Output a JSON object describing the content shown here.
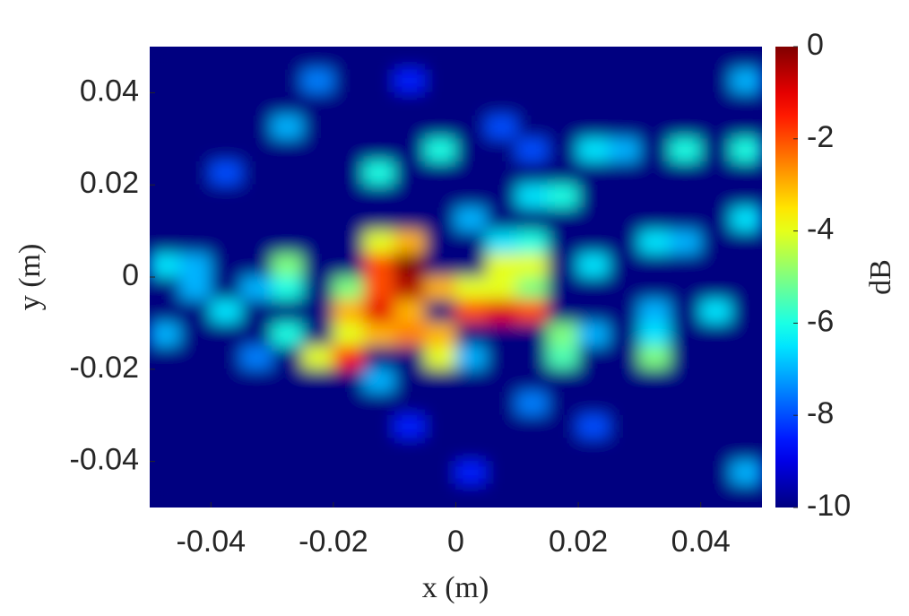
{
  "chart_data": {
    "type": "heatmap",
    "xlabel": "x (m)",
    "ylabel": "y (m)",
    "xlim": [
      -0.05,
      0.05
    ],
    "ylim": [
      -0.05,
      0.05
    ],
    "xticks": [
      -0.04,
      -0.02,
      0,
      0.02,
      0.04
    ],
    "yticks": [
      -0.04,
      -0.02,
      0,
      0.02,
      0.04
    ],
    "colormap": "jet",
    "colorbar": {
      "label": "dB",
      "lim": [
        -10,
        0
      ],
      "ticks": [
        0,
        -2,
        -4,
        -6,
        -8,
        -10
      ]
    },
    "x": [
      -0.0475,
      -0.0425,
      -0.0375,
      -0.0325,
      -0.0275,
      -0.0225,
      -0.0175,
      -0.0125,
      -0.0075,
      -0.0025,
      0.0025,
      0.0075,
      0.0125,
      0.0175,
      0.0225,
      0.0275,
      0.0325,
      0.0375,
      0.0425,
      0.0475
    ],
    "y": [
      0.0475,
      0.0425,
      0.0375,
      0.0325,
      0.0275,
      0.0225,
      0.0175,
      0.0125,
      0.0075,
      0.0025,
      -0.0025,
      -0.0075,
      -0.0125,
      -0.0175,
      -0.0225,
      -0.0275,
      -0.0325,
      -0.0375,
      -0.0425,
      -0.0475
    ],
    "z": [
      [
        -10,
        -10,
        -10,
        -10,
        -10,
        -10,
        -10,
        -10,
        -10,
        -10,
        -10,
        -10,
        -10,
        -10,
        -10,
        -10,
        -10,
        -10,
        -10,
        -10
      ],
      [
        -10,
        -10,
        -10,
        -10,
        -10,
        -7.5,
        -10,
        -10,
        -8.5,
        -10,
        -10,
        -10,
        -10,
        -10,
        -10,
        -10,
        -10,
        -10,
        -10,
        -7
      ],
      [
        -10,
        -10,
        -10,
        -10,
        -10,
        -10,
        -10,
        -10,
        -10,
        -10,
        -10,
        -10,
        -10,
        -10,
        -10,
        -10,
        -10,
        -10,
        -10,
        -10
      ],
      [
        -10,
        -10,
        -10,
        -10,
        -7,
        -10,
        -10,
        -10,
        -10,
        -10,
        -10,
        -8,
        -10,
        -10,
        -10,
        -10,
        -10,
        -10,
        -10,
        -10
      ],
      [
        -10,
        -10,
        -10,
        -10,
        -10,
        -10,
        -10,
        -10,
        -10,
        -6,
        -10,
        -10,
        -8,
        -10,
        -6.5,
        -7,
        -10,
        -6,
        -10,
        -6
      ],
      [
        -10,
        -10,
        -8,
        -10,
        -10,
        -10,
        -10,
        -6,
        -10,
        -10,
        -10,
        -10,
        -10,
        -10,
        -10,
        -10,
        -10,
        -10,
        -10,
        -10
      ],
      [
        -10,
        -10,
        -10,
        -10,
        -10,
        -10,
        -10,
        -10,
        -10,
        -10,
        -10,
        -10,
        -6.5,
        -6,
        -10,
        -10,
        -10,
        -10,
        -10,
        -10
      ],
      [
        -10,
        -10,
        -10,
        -10,
        -10,
        -10,
        -10,
        -10,
        -10,
        -10,
        -7,
        -10,
        -10,
        -10,
        -10,
        -10,
        -10,
        -10,
        -10,
        -6.5
      ],
      [
        -10,
        -10,
        -10,
        -10,
        -10,
        -10,
        -10,
        -4,
        -3,
        -10,
        -10,
        -6.5,
        -6,
        -10,
        -10,
        -10,
        -6.5,
        -7,
        -10,
        -10
      ],
      [
        -6.5,
        -7,
        -10,
        -10,
        -5,
        -10,
        -10,
        -2,
        0,
        -10,
        -10,
        -4,
        -4,
        -10,
        -6.5,
        -10,
        -10,
        -10,
        -10,
        -10
      ],
      [
        -10,
        -7,
        -10,
        -7,
        -6,
        -10,
        -5,
        -2,
        -0.5,
        -3,
        -4,
        -4,
        -5,
        -10,
        -10,
        -10,
        -10,
        -10,
        -10,
        -10
      ],
      [
        -10,
        -10,
        -6.5,
        -10,
        -10,
        -10,
        -3,
        -1,
        -3,
        -10,
        -2,
        -1,
        -2,
        -10,
        -10,
        -10,
        -7,
        -10,
        -6.5,
        -10
      ],
      [
        -7,
        -10,
        -10,
        -10,
        -6,
        -10,
        -4,
        -3,
        -2.5,
        -3,
        -10,
        -10,
        -10,
        -5,
        -7,
        -10,
        -6.5,
        -10,
        -10,
        -10
      ],
      [
        -10,
        -10,
        -10,
        -7.5,
        -10,
        -4,
        -1.5,
        -10,
        -10,
        -4,
        -7,
        -10,
        -10,
        -5.5,
        -10,
        -10,
        -5,
        -10,
        -10,
        -10
      ],
      [
        -10,
        -10,
        -10,
        -10,
        -10,
        -10,
        -10,
        -7,
        -10,
        -10,
        -10,
        -10,
        -10,
        -10,
        -10,
        -10,
        -10,
        -10,
        -10,
        -10
      ],
      [
        -10,
        -10,
        -10,
        -10,
        -10,
        -10,
        -10,
        -10,
        -10,
        -10,
        -10,
        -10,
        -7.5,
        -10,
        -10,
        -10,
        -10,
        -10,
        -10,
        -10
      ],
      [
        -10,
        -10,
        -10,
        -10,
        -10,
        -10,
        -10,
        -10,
        -8.5,
        -10,
        -10,
        -10,
        -10,
        -10,
        -8,
        -10,
        -10,
        -10,
        -10,
        -10
      ],
      [
        -10,
        -10,
        -10,
        -10,
        -10,
        -10,
        -10,
        -10,
        -10,
        -10,
        -10,
        -10,
        -10,
        -10,
        -10,
        -10,
        -10,
        -10,
        -10,
        -10
      ],
      [
        -10,
        -10,
        -10,
        -10,
        -10,
        -10,
        -10,
        -10,
        -10,
        -10,
        -8.5,
        -10,
        -10,
        -10,
        -10,
        -10,
        -10,
        -10,
        -10,
        -7
      ],
      [
        -10,
        -10,
        -10,
        -10,
        -10,
        -10,
        -10,
        -10,
        -10,
        -10,
        -10,
        -10,
        -10,
        -10,
        -10,
        -10,
        -10,
        -10,
        -10,
        -10
      ]
    ]
  }
}
